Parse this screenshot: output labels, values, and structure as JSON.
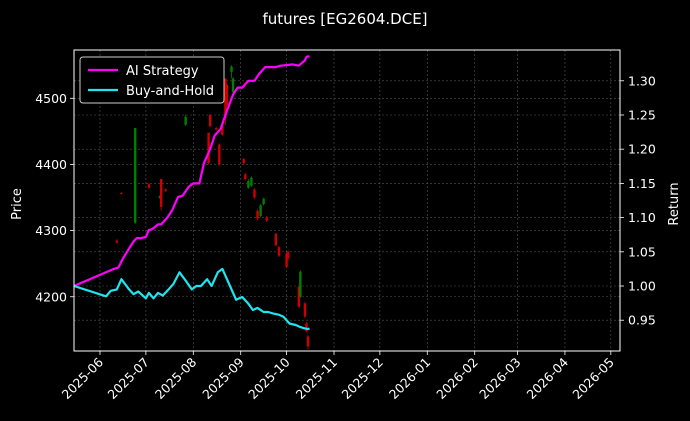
{
  "chart_data": {
    "type": "line",
    "title": "futures [EG2604.DCE]",
    "xlabel": "",
    "ylabel_left": "Price",
    "ylabel_right": "Return",
    "grid": true,
    "legend_position": "top-left",
    "colors": {
      "background": "#000000",
      "ai": "#ff00ff",
      "bh": "#1fe5f0",
      "up": "#008000",
      "down": "#d00000",
      "grid": "#555555"
    },
    "x_range": [
      "2025-05-15",
      "2026-05-07"
    ],
    "x_ticks": [
      "2025-06",
      "2025-07",
      "2025-08",
      "2025-09",
      "2025-10",
      "2025-11",
      "2025-12",
      "2026-01",
      "2026-02",
      "2026-03",
      "2026-04",
      "2026-05"
    ],
    "ylim_price": [
      4118,
      4573
    ],
    "yticks_price": [
      4200,
      4300,
      4400,
      4500
    ],
    "ylim_return": [
      0.905,
      1.345
    ],
    "yticks_return": [
      0.95,
      1.0,
      1.05,
      1.1,
      1.15,
      1.2,
      1.25,
      1.3
    ],
    "series": [
      {
        "name": "AI Strategy",
        "x": [
          "2025-05-15",
          "2025-06-10",
          "2025-06-13",
          "2025-06-16",
          "2025-06-20",
          "2025-06-23",
          "2025-06-25",
          "2025-06-28",
          "2025-07-01",
          "2025-07-03",
          "2025-07-05",
          "2025-07-09",
          "2025-07-11",
          "2025-07-15",
          "2025-07-18",
          "2025-07-22",
          "2025-07-25",
          "2025-07-29",
          "2025-08-01",
          "2025-08-05",
          "2025-08-08",
          "2025-08-12",
          "2025-08-15",
          "2025-08-19",
          "2025-08-22",
          "2025-08-27",
          "2025-08-30",
          "2025-09-02",
          "2025-09-06",
          "2025-09-10",
          "2025-09-13",
          "2025-09-17",
          "2025-09-20",
          "2025-09-24",
          "2025-09-27",
          "2025-10-01",
          "2025-10-05",
          "2025-10-09",
          "2025-10-13",
          "2025-10-14",
          "2025-10-16"
        ],
        "values": [
          1.0,
          1.025,
          1.027,
          1.04,
          1.055,
          1.065,
          1.07,
          1.07,
          1.072,
          1.082,
          1.083,
          1.09,
          1.09,
          1.1,
          1.11,
          1.13,
          1.132,
          1.145,
          1.15,
          1.15,
          1.18,
          1.2,
          1.22,
          1.23,
          1.25,
          1.28,
          1.29,
          1.29,
          1.3,
          1.3,
          1.31,
          1.32,
          1.32,
          1.32,
          1.322,
          1.323,
          1.324,
          1.322,
          1.33,
          1.335,
          1.336
        ]
      },
      {
        "name": "Buy-and-Hold",
        "x": [
          "2025-05-15",
          "2025-06-05",
          "2025-06-08",
          "2025-06-12",
          "2025-06-15",
          "2025-06-20",
          "2025-06-23",
          "2025-06-26",
          "2025-07-01",
          "2025-07-03",
          "2025-07-06",
          "2025-07-09",
          "2025-07-12",
          "2025-07-15",
          "2025-07-19",
          "2025-07-23",
          "2025-07-27",
          "2025-07-31",
          "2025-08-03",
          "2025-08-06",
          "2025-08-10",
          "2025-08-13",
          "2025-08-17",
          "2025-08-20",
          "2025-08-25",
          "2025-08-29",
          "2025-09-02",
          "2025-09-06",
          "2025-09-09",
          "2025-09-12",
          "2025-09-16",
          "2025-09-19",
          "2025-09-22",
          "2025-09-26",
          "2025-09-29",
          "2025-10-03",
          "2025-10-07",
          "2025-10-10",
          "2025-10-13",
          "2025-10-15",
          "2025-10-16"
        ],
        "values": [
          1.0,
          0.985,
          0.993,
          0.995,
          1.01,
          0.995,
          0.988,
          0.992,
          0.982,
          0.99,
          0.982,
          0.99,
          0.986,
          0.993,
          1.003,
          1.02,
          1.008,
          0.995,
          1.0,
          1.0,
          1.01,
          1.0,
          1.02,
          1.025,
          1.0,
          0.98,
          0.984,
          0.974,
          0.965,
          0.968,
          0.962,
          0.962,
          0.96,
          0.958,
          0.955,
          0.945,
          0.943,
          0.94,
          0.938,
          0.937,
          0.938
        ]
      }
    ],
    "candles": [
      {
        "date": "2025-06-12",
        "open": 4285,
        "close": 4282,
        "high": 4287,
        "low": 4280
      },
      {
        "date": "2025-06-15",
        "open": 4357,
        "close": 4356,
        "high": 4358,
        "low": 4355
      },
      {
        "date": "2025-06-24",
        "open": 4312,
        "close": 4455,
        "high": 4455,
        "low": 4310
      },
      {
        "date": "2025-07-03",
        "open": 4370,
        "close": 4365,
        "high": 4372,
        "low": 4363
      },
      {
        "date": "2025-07-10",
        "open": 4350,
        "close": 4352,
        "high": 4353,
        "low": 4348
      },
      {
        "date": "2025-07-11",
        "open": 4378,
        "close": 4336,
        "high": 4378,
        "low": 4330
      },
      {
        "date": "2025-07-14",
        "open": 4362,
        "close": 4360,
        "high": 4364,
        "low": 4358
      },
      {
        "date": "2025-07-27",
        "open": 4460,
        "close": 4472,
        "high": 4475,
        "low": 4458
      },
      {
        "date": "2025-08-11",
        "open": 4448,
        "close": 4402,
        "high": 4448,
        "low": 4400
      },
      {
        "date": "2025-08-12",
        "open": 4475,
        "close": 4458,
        "high": 4476,
        "low": 4456
      },
      {
        "date": "2025-08-16",
        "open": 4455,
        "close": 4453,
        "high": 4457,
        "low": 4451
      },
      {
        "date": "2025-08-18",
        "open": 4430,
        "close": 4400,
        "high": 4432,
        "low": 4398
      },
      {
        "date": "2025-08-20",
        "open": 4458,
        "close": 4445,
        "high": 4460,
        "low": 4443
      },
      {
        "date": "2025-08-22",
        "open": 4530,
        "close": 4470,
        "high": 4530,
        "low": 4460
      },
      {
        "date": "2025-08-23",
        "open": 4520,
        "close": 4490,
        "high": 4522,
        "low": 4488
      },
      {
        "date": "2025-08-26",
        "open": 4540,
        "close": 4548,
        "high": 4550,
        "low": 4530
      },
      {
        "date": "2025-08-27",
        "open": 4510,
        "close": 4530,
        "high": 4532,
        "low": 4508
      },
      {
        "date": "2025-09-03",
        "open": 4408,
        "close": 4402,
        "high": 4410,
        "low": 4400
      },
      {
        "date": "2025-09-04",
        "open": 4385,
        "close": 4378,
        "high": 4387,
        "low": 4376
      },
      {
        "date": "2025-09-06",
        "open": 4365,
        "close": 4375,
        "high": 4378,
        "low": 4363
      },
      {
        "date": "2025-09-08",
        "open": 4368,
        "close": 4380,
        "high": 4382,
        "low": 4366
      },
      {
        "date": "2025-09-10",
        "open": 4362,
        "close": 4350,
        "high": 4364,
        "low": 4348
      },
      {
        "date": "2025-09-12",
        "open": 4330,
        "close": 4318,
        "high": 4332,
        "low": 4316
      },
      {
        "date": "2025-09-14",
        "open": 4322,
        "close": 4338,
        "high": 4340,
        "low": 4320
      },
      {
        "date": "2025-09-16",
        "open": 4340,
        "close": 4348,
        "high": 4350,
        "low": 4338
      },
      {
        "date": "2025-09-18",
        "open": 4320,
        "close": 4315,
        "high": 4322,
        "low": 4313
      },
      {
        "date": "2025-09-24",
        "open": 4295,
        "close": 4278,
        "high": 4297,
        "low": 4276
      },
      {
        "date": "2025-09-26",
        "open": 4275,
        "close": 4262,
        "high": 4277,
        "low": 4260
      },
      {
        "date": "2025-10-01",
        "open": 4265,
        "close": 4245,
        "high": 4267,
        "low": 4243
      },
      {
        "date": "2025-10-02",
        "open": 4268,
        "close": 4258,
        "high": 4270,
        "low": 4256
      },
      {
        "date": "2025-10-09",
        "open": 4215,
        "close": 4185,
        "high": 4217,
        "low": 4183
      },
      {
        "date": "2025-10-10",
        "open": 4200,
        "close": 4238,
        "high": 4240,
        "low": 4198
      },
      {
        "date": "2025-10-13",
        "open": 4190,
        "close": 4170,
        "high": 4192,
        "low": 4168
      },
      {
        "date": "2025-10-14",
        "open": 4160,
        "close": 4148,
        "high": 4162,
        "low": 4146
      },
      {
        "date": "2025-10-15",
        "open": 4140,
        "close": 4125,
        "high": 4142,
        "low": 4120
      }
    ]
  }
}
